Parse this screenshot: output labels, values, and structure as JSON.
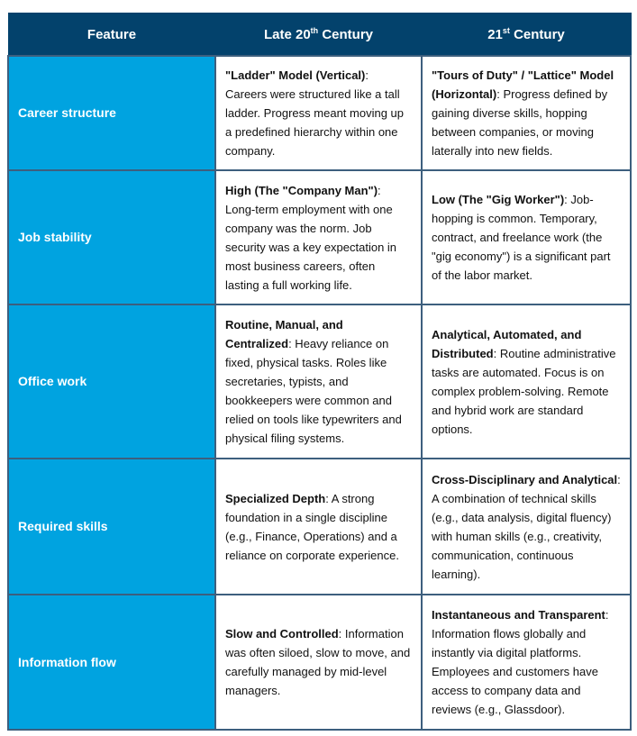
{
  "header": {
    "feature": "Feature",
    "late20_prefix": "Late 20",
    "late20_sup": "th",
    "late20_suffix": " Century",
    "c21_prefix": "21",
    "c21_sup": "st",
    "c21_suffix": " Century"
  },
  "colors": {
    "header_bg": "#03426c",
    "feature_bg": "#00a3e0",
    "border": "#3d5f7e"
  },
  "rows": [
    {
      "feature": "Career structure",
      "late20_bold": "\"Ladder\" Model (Vertical)",
      "late20_text": ": Careers were structured like a tall ladder. Progress meant moving up a predefined hierarchy within one company.",
      "c21_bold": "\"Tours of Duty\" / \"Lattice\" Model (Horizontal)",
      "c21_text": ": Progress defined by gaining diverse skills, hopping between companies, or moving laterally into new fields."
    },
    {
      "feature": "Job stability",
      "late20_bold": "High (The \"Company Man\")",
      "late20_text": ": Long-term employment with one company was the norm. Job security was a key expectation in most business careers, often lasting a full working life.",
      "c21_bold": "Low (The \"Gig Worker\")",
      "c21_text": ": Job-hopping is common. Temporary, contract, and freelance work (the \"gig economy\") is a significant part of the labor market."
    },
    {
      "feature": "Office work",
      "late20_bold": "Routine, Manual, and Centralized",
      "late20_text": ": Heavy reliance on fixed, physical tasks. Roles like secretaries, typists, and bookkeepers were common and relied on tools like typewriters and physical filing systems.",
      "c21_bold": "Analytical, Automated, and Distributed",
      "c21_text": ": Routine administrative tasks are automated. Focus is on complex problem-solving. Remote and hybrid work are standard options."
    },
    {
      "feature": "Required skills",
      "late20_bold": "Specialized Depth",
      "late20_text": ": A strong foundation in a single discipline (e.g., Finance, Operations) and a reliance on corporate experience.",
      "c21_bold": "Cross-Disciplinary and Analytical",
      "c21_text": ": A combination of technical skills (e.g., data analysis, digital fluency) with human skills (e.g., creativity, communication, continuous learning)."
    },
    {
      "feature": "Information flow",
      "late20_bold": "Slow and Controlled",
      "late20_text": ": Information was often siloed, slow to move, and carefully managed by mid-level managers.",
      "c21_bold": "Instantaneous and Transparent",
      "c21_text": ": Information flows globally and instantly via digital platforms. Employees and customers have access to company data and reviews (e.g., Glassdoor)."
    }
  ]
}
